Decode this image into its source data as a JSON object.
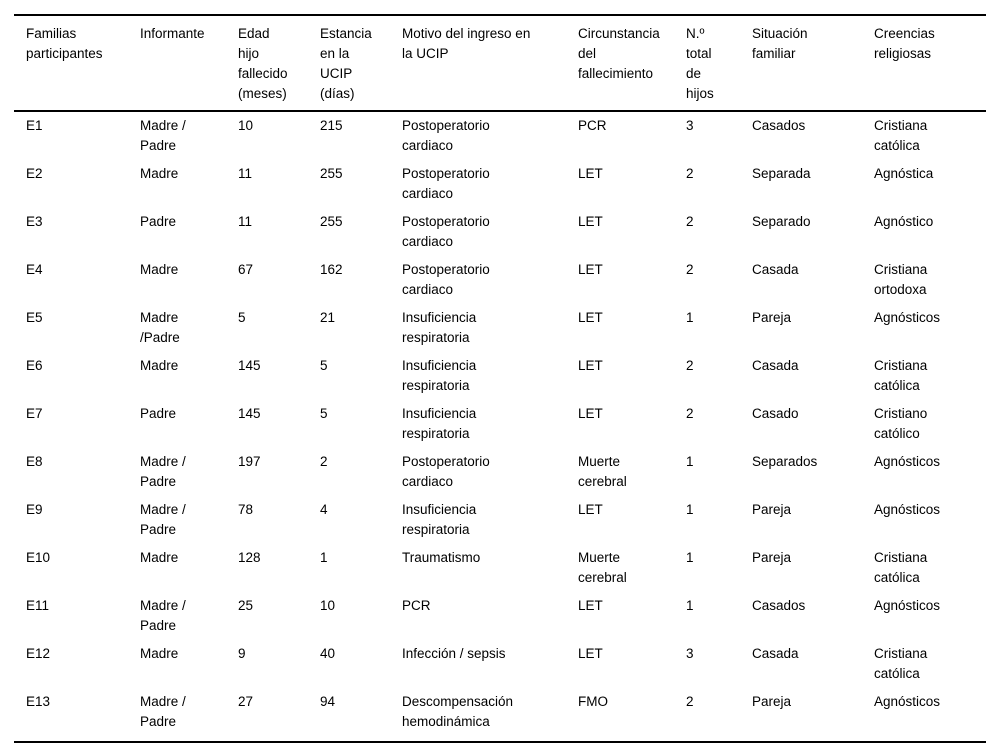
{
  "table": {
    "text_color": "#000000",
    "background_color": "#ffffff",
    "rule_color": "#000000",
    "columns": [
      {
        "key": "familias-participantes",
        "label": "Familias\nparticipantes"
      },
      {
        "key": "informante",
        "label": "Informante"
      },
      {
        "key": "edad-hijo-fallecido-meses",
        "label": "Edad\nhijo\nfallecido\n(meses)"
      },
      {
        "key": "estancia-ucip-dias",
        "label": "Estancia\nen la\nUCIP\n(días)"
      },
      {
        "key": "motivo-ingreso-ucip",
        "label": "Motivo del ingreso en\nla UCIP"
      },
      {
        "key": "circunstancia-fallecimiento",
        "label": "Circunstancia\ndel\nfallecimiento"
      },
      {
        "key": "n-total-hijos",
        "label": "N.º\ntotal\nde\nhijos"
      },
      {
        "key": "situacion-familiar",
        "label": "Situación\nfamiliar"
      },
      {
        "key": "creencias-religiosas",
        "label": "Creencias\nreligiosas"
      }
    ],
    "rows": [
      {
        "cells": [
          "E1",
          "Madre /\nPadre",
          "10",
          "215",
          "Postoperatorio\ncardiaco",
          "PCR",
          "3",
          "Casados",
          "Cristiana\ncatólica"
        ]
      },
      {
        "cells": [
          "E2",
          "Madre",
          "11",
          "255",
          "Postoperatorio\ncardiaco",
          "LET",
          "2",
          "Separada",
          "Agnóstica"
        ]
      },
      {
        "cells": [
          "E3",
          "Padre",
          "11",
          "255",
          "Postoperatorio\ncardiaco",
          "LET",
          "2",
          "Separado",
          "Agnóstico"
        ]
      },
      {
        "cells": [
          "E4",
          "Madre",
          "67",
          "162",
          "Postoperatorio\ncardiaco",
          "LET",
          "2",
          "Casada",
          "Cristiana\nortodoxa"
        ]
      },
      {
        "cells": [
          "E5",
          "Madre\n/Padre",
          "5",
          "21",
          "Insuficiencia\nrespiratoria",
          "LET",
          "1",
          "Pareja",
          "Agnósticos"
        ]
      },
      {
        "cells": [
          "E6",
          "Madre",
          "145",
          "5",
          "Insuficiencia\nrespiratoria",
          "LET",
          "2",
          "Casada",
          "Cristiana\ncatólica"
        ]
      },
      {
        "cells": [
          "E7",
          "Padre",
          "145",
          "5",
          "Insuficiencia\nrespiratoria",
          "LET",
          "2",
          "Casado",
          "Cristiano\ncatólico"
        ]
      },
      {
        "cells": [
          "E8",
          "Madre /\nPadre",
          "197",
          "2",
          "Postoperatorio\ncardiaco",
          "Muerte\ncerebral",
          "1",
          "Separados",
          "Agnósticos"
        ]
      },
      {
        "cells": [
          "E9",
          "Madre /\nPadre",
          "78",
          "4",
          "Insuficiencia\nrespiratoria",
          "LET",
          "1",
          "Pareja",
          "Agnósticos"
        ]
      },
      {
        "cells": [
          "E10",
          "Madre",
          "128",
          "1",
          "Traumatismo",
          "Muerte\ncerebral",
          "1",
          "Pareja",
          "Cristiana\ncatólica"
        ]
      },
      {
        "cells": [
          "E11",
          "Madre /\nPadre",
          "25",
          "10",
          "PCR",
          "LET",
          "1",
          "Casados",
          "Agnósticos"
        ]
      },
      {
        "cells": [
          "E12",
          "Madre",
          "9",
          "40",
          "Infección / sepsis",
          "LET",
          "3",
          "Casada",
          "Cristiana\ncatólica"
        ]
      },
      {
        "cells": [
          "E13",
          "Madre /\nPadre",
          "27",
          "94",
          "Descompensación\nhemodinámica",
          "FMO",
          "2",
          "Pareja",
          "Agnósticos"
        ]
      }
    ]
  }
}
